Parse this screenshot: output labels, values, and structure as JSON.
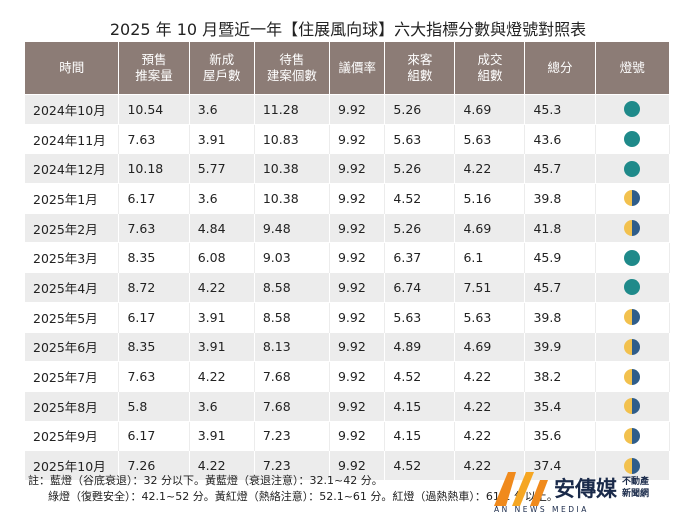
{
  "title": "2025 年 10 月暨近一年【住展風向球】六大指標分數與燈號對照表",
  "table": {
    "header": [
      "時間",
      "預售\n推案量",
      "新成\n屋戶數",
      "待售\n建案個數",
      "議價率",
      "來客\n組數",
      "成交\n組數",
      "總分",
      "燈號"
    ],
    "rows": [
      [
        "2024年10月",
        "10.54",
        "3.6",
        "11.28",
        "9.92",
        "5.26",
        "4.69",
        "45.3"
      ],
      [
        "2024年11月",
        "7.63",
        "3.91",
        "10.83",
        "9.92",
        "5.63",
        "5.63",
        "43.6"
      ],
      [
        "2024年12月",
        "10.18",
        "5.77",
        "10.38",
        "9.92",
        "5.26",
        "4.22",
        "45.7"
      ],
      [
        "2025年1月",
        "6.17",
        "3.6",
        "10.38",
        "9.92",
        "4.52",
        "5.16",
        "39.8"
      ],
      [
        "2025年2月",
        "7.63",
        "4.84",
        "9.48",
        "9.92",
        "5.26",
        "4.69",
        "41.8"
      ],
      [
        "2025年3月",
        "8.35",
        "6.08",
        "9.03",
        "9.92",
        "6.37",
        "6.1",
        "45.9"
      ],
      [
        "2025年4月",
        "8.72",
        "4.22",
        "8.58",
        "9.92",
        "6.74",
        "7.51",
        "45.7"
      ],
      [
        "2025年5月",
        "6.17",
        "3.91",
        "8.58",
        "9.92",
        "5.63",
        "5.63",
        "39.8"
      ],
      [
        "2025年6月",
        "8.35",
        "3.91",
        "8.13",
        "9.92",
        "4.89",
        "4.69",
        "39.9"
      ],
      [
        "2025年7月",
        "7.63",
        "4.22",
        "7.68",
        "9.92",
        "4.52",
        "4.22",
        "38.2"
      ],
      [
        "2025年8月",
        "5.8",
        "3.6",
        "7.68",
        "9.92",
        "4.15",
        "4.22",
        "35.4"
      ],
      [
        "2025年9月",
        "6.17",
        "3.91",
        "7.23",
        "9.92",
        "4.15",
        "4.22",
        "35.6"
      ],
      [
        "2025年10月",
        "7.26",
        "4.22",
        "7.23",
        "9.92",
        "4.52",
        "4.22",
        "37.4"
      ]
    ],
    "lamp_colors": [
      [
        "#1f8a8a"
      ],
      [
        "#1f8a8a"
      ],
      [
        "#1f8a8a"
      ],
      [
        "#f2c14e",
        "#2f5d8a"
      ],
      [
        "#f2c14e",
        "#2f5d8a"
      ],
      [
        "#1f8a8a"
      ],
      [
        "#1f8a8a"
      ],
      [
        "#f2c14e",
        "#2f5d8a"
      ],
      [
        "#f2c14e",
        "#2f5d8a"
      ],
      [
        "#f2c14e",
        "#2f5d8a"
      ],
      [
        "#f2c14e",
        "#2f5d8a"
      ],
      [
        "#f2c14e",
        "#2f5d8a"
      ],
      [
        "#f2c14e",
        "#2f5d8a"
      ]
    ]
  },
  "notes": [
    "註：藍燈（谷底衰退）：32 分以下。黃藍燈（衰退注意）：32.1~42 分。",
    "綠燈（復甦安全）：42.1~52 分。黃紅燈（熱絡注意）：52.1~61 分。紅燈（過熱熱車）：61.1 分以上。"
  ],
  "logo": {
    "name": "安傳媒",
    "tag1": "不動產",
    "tag2": "新聞網",
    "sub": "AN NEWS MEDIA"
  }
}
